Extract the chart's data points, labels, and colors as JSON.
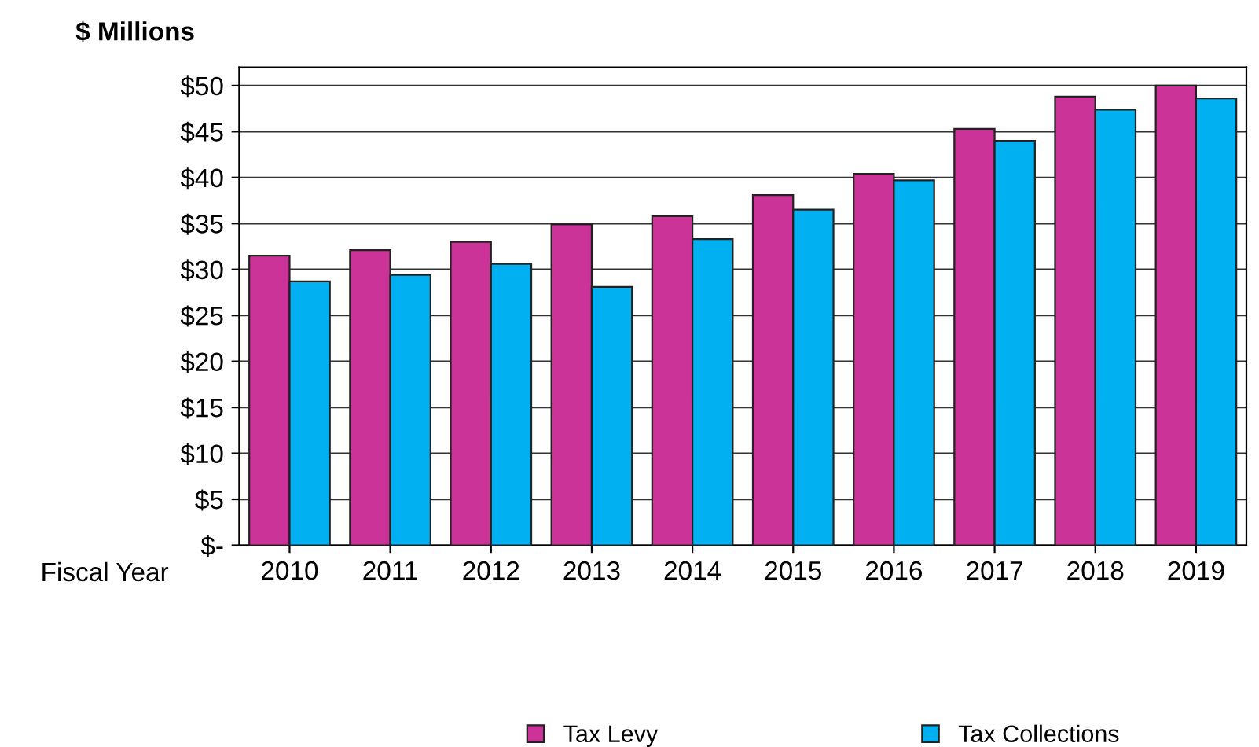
{
  "chart_data": {
    "type": "bar",
    "ylabel": "$ Millions",
    "xlabel": "Fiscal Year",
    "categories": [
      "2010",
      "2011",
      "2012",
      "2013",
      "2014",
      "2015",
      "2016",
      "2017",
      "2018",
      "2019"
    ],
    "series": [
      {
        "name": "Tax Levy",
        "color": "#cc3399",
        "values": [
          31.5,
          32.1,
          33.0,
          34.9,
          35.8,
          38.1,
          40.4,
          45.3,
          48.8,
          50.0
        ]
      },
      {
        "name": "Tax Collections",
        "color": "#00b0f0",
        "values": [
          28.7,
          29.4,
          30.6,
          28.1,
          33.3,
          36.5,
          39.7,
          44.0,
          47.4,
          48.6
        ]
      }
    ],
    "ylim": [
      0,
      52
    ],
    "yticks": [
      {
        "value": 0,
        "label": "$-"
      },
      {
        "value": 5,
        "label": "$5"
      },
      {
        "value": 10,
        "label": "$10"
      },
      {
        "value": 15,
        "label": "$15"
      },
      {
        "value": 20,
        "label": "$20"
      },
      {
        "value": 25,
        "label": "$25"
      },
      {
        "value": 30,
        "label": "$30"
      },
      {
        "value": 35,
        "label": "$35"
      },
      {
        "value": 40,
        "label": "$40"
      },
      {
        "value": 45,
        "label": "$45"
      },
      {
        "value": 50,
        "label": "$50"
      }
    ],
    "grid": "y",
    "legend": "bottom"
  }
}
